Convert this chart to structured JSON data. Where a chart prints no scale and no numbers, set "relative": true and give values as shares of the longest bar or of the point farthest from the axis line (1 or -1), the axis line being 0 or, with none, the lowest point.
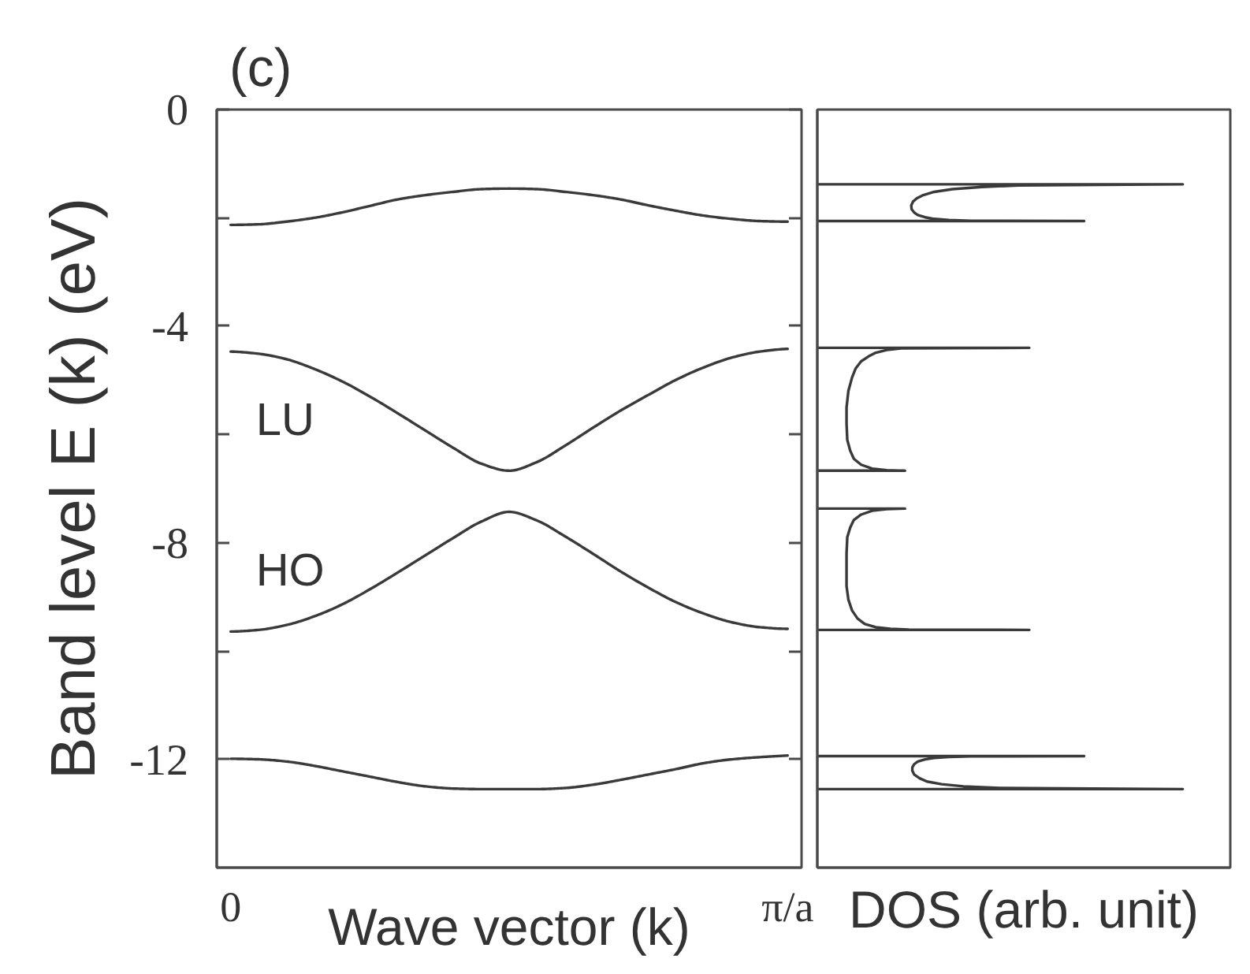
{
  "chart_data": [
    {
      "type": "line",
      "title": "(c)",
      "xlabel": "Wave vector (k)",
      "ylabel": "Band level E (k) (eV)",
      "categories": [
        "0",
        null,
        null,
        null,
        null,
        null,
        null,
        null,
        null,
        null,
        null,
        null,
        null,
        null,
        null,
        null,
        null,
        null,
        null,
        null,
        "π/a"
      ],
      "ylim": [
        -14,
        0
      ],
      "yticks": [
        0,
        {
          "value": -2,
          "label": null
        },
        -4,
        {
          "value": -6,
          "label": null
        },
        -8,
        {
          "value": -10,
          "label": null
        },
        -12
      ],
      "series": [
        {
          "color": "#3a3a3a",
          "values": [
            -2.13,
            -2.12,
            -2.07,
            -2.0,
            -1.9,
            -1.78,
            -1.66,
            -1.58,
            -1.52,
            -1.47,
            -1.46,
            -1.47,
            -1.52,
            -1.58,
            -1.66,
            -1.77,
            -1.87,
            -1.96,
            -2.02,
            -2.06,
            -2.07
          ]
        },
        {
          "name": "LU",
          "color": "#3a3a3a",
          "values": [
            -4.47,
            -4.51,
            -4.61,
            -4.79,
            -5.02,
            -5.3,
            -5.61,
            -5.93,
            -6.25,
            -6.54,
            -6.67,
            -6.51,
            -6.21,
            -5.88,
            -5.56,
            -5.27,
            -4.99,
            -4.76,
            -4.58,
            -4.47,
            -4.42
          ]
        },
        {
          "name": "HO",
          "color": "#3a3a3a",
          "values": [
            -9.64,
            -9.61,
            -9.52,
            -9.36,
            -9.14,
            -8.86,
            -8.55,
            -8.23,
            -7.91,
            -7.61,
            -7.43,
            -7.59,
            -7.88,
            -8.2,
            -8.53,
            -8.83,
            -9.1,
            -9.31,
            -9.47,
            -9.56,
            -9.59
          ]
        },
        {
          "color": "#3a3a3a",
          "values": [
            -11.99,
            -12.0,
            -12.04,
            -12.12,
            -12.22,
            -12.32,
            -12.42,
            -12.5,
            -12.54,
            -12.55,
            -12.55,
            -12.55,
            -12.53,
            -12.47,
            -12.38,
            -12.28,
            -12.18,
            -12.07,
            -12.0,
            -11.96,
            -11.93
          ]
        }
      ]
    },
    {
      "type": "line",
      "orientation": "horizontal",
      "relative": true,
      "xlabel": "DOS (arb. unit)",
      "ylim": [
        -14,
        0
      ],
      "yticks": [
        0,
        -4,
        -8,
        -12
      ],
      "tick_labels": false,
      "series": [
        {
          "color": "#3a3a3a",
          "x": [
            -2.06,
            -2.06,
            -2.055,
            -2.04,
            -2.02,
            -1.99,
            -1.95,
            -1.9,
            -1.84,
            -1.77,
            -1.7,
            -1.64,
            -1.58,
            -1.52,
            -1.47,
            -1.43,
            -1.4,
            -1.38,
            -1.38
          ],
          "values": [
            0,
            0.73,
            0.42,
            0.36,
            0.32,
            0.295,
            0.275,
            0.265,
            0.258,
            0.257,
            0.262,
            0.272,
            0.29,
            0.32,
            0.37,
            0.45,
            0.55,
            1,
            0
          ]
        },
        {
          "color": "#3a3a3a",
          "x": [
            -4.4,
            -4.4,
            -4.41,
            -4.44,
            -4.49,
            -4.56,
            -4.65,
            -4.78,
            -4.95,
            -5.2,
            -5.5,
            -5.8,
            -6.1,
            -6.3,
            -6.45,
            -6.56,
            -6.63,
            -6.66,
            -6.67,
            -6.67
          ],
          "values": [
            0,
            0.58,
            0.23,
            0.19,
            0.16,
            0.14,
            0.12,
            0.105,
            0.095,
            0.085,
            0.08,
            0.08,
            0.082,
            0.09,
            0.1,
            0.12,
            0.15,
            0.19,
            0.24,
            0
          ]
        },
        {
          "color": "#3a3a3a",
          "x": [
            -7.37,
            -7.37,
            -7.38,
            -7.41,
            -7.48,
            -7.58,
            -7.72,
            -7.9,
            -8.2,
            -8.5,
            -8.8,
            -9.05,
            -9.25,
            -9.4,
            -9.5,
            -9.56,
            -9.59,
            -9.605,
            -9.61,
            -9.61
          ],
          "values": [
            0,
            0.24,
            0.19,
            0.15,
            0.12,
            0.1,
            0.09,
            0.082,
            0.08,
            0.08,
            0.08,
            0.085,
            0.095,
            0.11,
            0.13,
            0.16,
            0.2,
            0.25,
            0.58,
            0
          ]
        },
        {
          "color": "#3a3a3a",
          "x": [
            -11.94,
            -11.94,
            -11.945,
            -11.955,
            -11.975,
            -12.0,
            -12.04,
            -12.09,
            -12.15,
            -12.21,
            -12.28,
            -12.35,
            -12.41,
            -12.46,
            -12.5,
            -12.53,
            -12.55,
            -12.55
          ],
          "values": [
            0,
            0.73,
            0.42,
            0.36,
            0.32,
            0.295,
            0.275,
            0.265,
            0.26,
            0.26,
            0.265,
            0.28,
            0.3,
            0.34,
            0.4,
            0.5,
            1,
            0
          ]
        }
      ]
    }
  ]
}
